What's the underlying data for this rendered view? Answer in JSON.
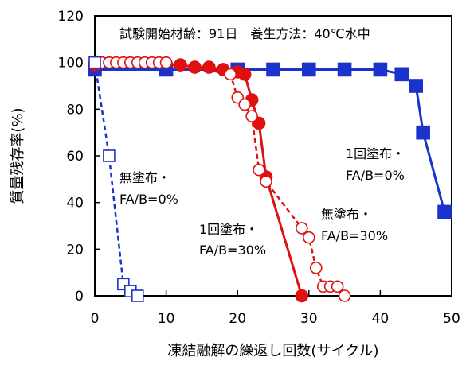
{
  "chart_data": {
    "type": "line",
    "title": "",
    "condition_text": "試験開始材齢：91日　養生方法：40℃水中",
    "xlabel": "凍結融解の繰返し回数(サイクル)",
    "ylabel": "質量残存率(%)",
    "xlim": [
      0,
      50
    ],
    "ylim": [
      0,
      120
    ],
    "xticks": [
      "0",
      "10",
      "20",
      "30",
      "40",
      "50"
    ],
    "yticks": [
      "0",
      "20",
      "40",
      "60",
      "80",
      "100",
      "120"
    ],
    "grid": false,
    "legend": "none",
    "series": [
      {
        "annotation": [
          "無塗布・",
          "FA/B=0%"
        ],
        "color": "#1a33cc",
        "marker": "open-square",
        "line": "dashed",
        "x": [
          0,
          2,
          4,
          5,
          6
        ],
        "y": [
          100,
          60,
          5,
          2,
          0
        ]
      },
      {
        "annotation": [
          "無塗布・",
          "FA/B=30%"
        ],
        "color": "#e01010",
        "marker": "open-circle",
        "line": "dashed",
        "x": [
          0,
          1,
          2,
          3,
          4,
          5,
          6,
          7,
          8,
          9,
          10,
          19,
          20,
          21,
          22,
          23,
          24,
          29,
          30,
          31,
          32,
          33,
          34,
          35
        ],
        "y": [
          100,
          100,
          100,
          100,
          100,
          100,
          100,
          100,
          100,
          100,
          100,
          95,
          85,
          82,
          77,
          54,
          49,
          29,
          25,
          12,
          4,
          4,
          4,
          0
        ]
      },
      {
        "annotation": [
          "1回塗布・",
          "FA/B=30%"
        ],
        "color": "#e01010",
        "marker": "filled-circle",
        "line": "solid",
        "x": [
          0,
          12,
          14,
          16,
          18,
          20,
          21,
          22,
          23,
          24,
          29
        ],
        "y": [
          99,
          99,
          98,
          98,
          97,
          96,
          95,
          84,
          74,
          51,
          0
        ]
      },
      {
        "annotation": [
          "1回塗布・",
          "FA/B=0%"
        ],
        "color": "#1a33cc",
        "marker": "filled-square",
        "line": "solid",
        "x": [
          0,
          10,
          20,
          25,
          30,
          35,
          40,
          43,
          45,
          46,
          49
        ],
        "y": [
          97,
          97,
          97,
          97,
          97,
          97,
          97,
          95,
          90,
          70,
          36
        ]
      }
    ]
  }
}
